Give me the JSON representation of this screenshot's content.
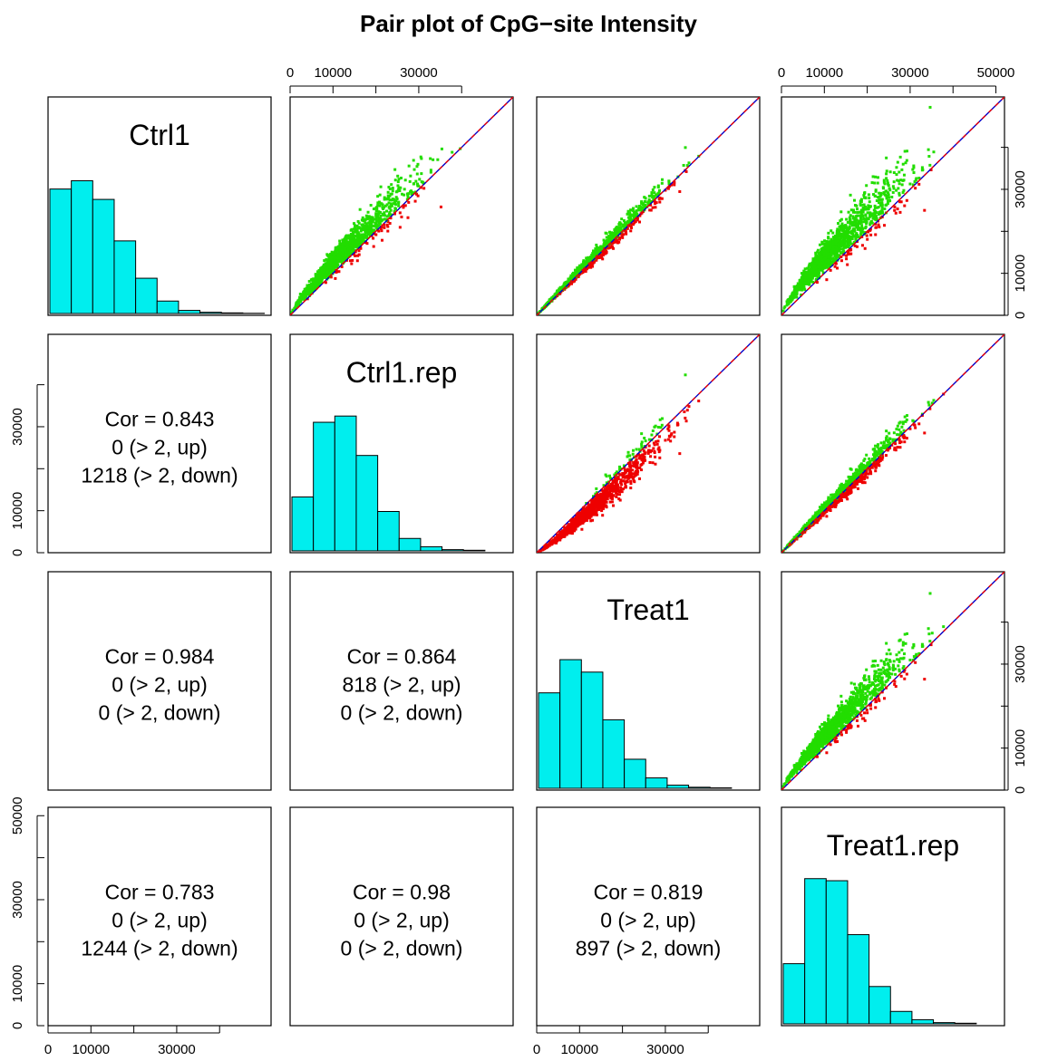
{
  "chart_data": {
    "type": "scatter",
    "title": "Pair plot of CpG−site Intensity",
    "variables": [
      "Ctrl1",
      "Ctrl1.rep",
      "Treat1",
      "Treat1.rep"
    ],
    "axis_range": [
      0,
      52000
    ],
    "ticks": {
      "x_top_col2": [
        "0",
        "10000",
        "30000"
      ],
      "x_top_col4": [
        "0",
        "10000",
        "30000",
        "50000"
      ],
      "x_bottom_col1": [
        "0",
        "10000",
        "30000"
      ],
      "x_bottom_col3": [
        "0",
        "10000",
        "30000"
      ],
      "y_left_row2": [
        "0",
        "10000",
        "30000"
      ],
      "y_left_row4": [
        "0",
        "10000",
        "30000",
        "50000"
      ],
      "y_right_row1": [
        "0",
        "10000",
        "30000"
      ],
      "y_right_row3": [
        "0",
        "10000",
        "30000"
      ]
    },
    "histograms": [
      {
        "variable": "Ctrl1",
        "bin_width": 5000,
        "counts": [
          0.6,
          0.64,
          0.55,
          0.35,
          0.17,
          0.06,
          0.015,
          0.006,
          0.003,
          0.001
        ]
      },
      {
        "variable": "Ctrl1.rep",
        "bin_width": 5000,
        "counts": [
          0.26,
          0.62,
          0.65,
          0.46,
          0.19,
          0.06,
          0.02,
          0.006,
          0.003
        ]
      },
      {
        "variable": "Treat1",
        "bin_width": 5000,
        "counts": [
          0.46,
          0.62,
          0.56,
          0.33,
          0.14,
          0.05,
          0.015,
          0.005,
          0.002
        ]
      },
      {
        "variable": "Treat1.rep",
        "bin_width": 5000,
        "counts": [
          0.29,
          0.7,
          0.69,
          0.43,
          0.18,
          0.06,
          0.02,
          0.006,
          0.003
        ]
      }
    ],
    "correlations": [
      {
        "row": 2,
        "col": 1,
        "cor": "Cor = 0.843",
        "up": "0 (> 2, up)",
        "down": "1218 (> 2, down)"
      },
      {
        "row": 3,
        "col": 1,
        "cor": "Cor = 0.984",
        "up": "0 (> 2, up)",
        "down": "0 (> 2, down)"
      },
      {
        "row": 3,
        "col": 2,
        "cor": "Cor = 0.864",
        "up": "818 (> 2, up)",
        "down": "0 (> 2, down)"
      },
      {
        "row": 4,
        "col": 1,
        "cor": "Cor = 0.783",
        "up": "0 (> 2, up)",
        "down": "1244 (> 2, down)"
      },
      {
        "row": 4,
        "col": 2,
        "cor": "Cor = 0.98",
        "up": "0 (> 2, up)",
        "down": "0 (> 2, down)"
      },
      {
        "row": 4,
        "col": 3,
        "cor": "Cor = 0.819",
        "up": "0 (> 2, up)",
        "down": "897 (> 2, down)"
      }
    ],
    "scatter_pairs": [
      {
        "row": 1,
        "col": 2,
        "curve_exponent": 0.85,
        "spread": 0.1
      },
      {
        "row": 1,
        "col": 3,
        "curve_exponent": 0.97,
        "spread": 0.05
      },
      {
        "row": 1,
        "col": 4,
        "curve_exponent": 0.8,
        "spread": 0.12
      },
      {
        "row": 2,
        "col": 3,
        "curve_exponent": 1.15,
        "spread": 0.1
      },
      {
        "row": 2,
        "col": 4,
        "curve_exponent": 0.98,
        "spread": 0.06
      },
      {
        "row": 3,
        "col": 4,
        "curve_exponent": 0.84,
        "spread": 0.1
      }
    ],
    "colors": {
      "above_diagonal": "#22dd00",
      "below_diagonal": "#ee0000",
      "line_x_equals_y": "#0000cc",
      "line_dashed": "#ee0000",
      "line_fit": "#000000",
      "histogram_fill": "#00eeee"
    },
    "grid": false,
    "legend": "none"
  }
}
